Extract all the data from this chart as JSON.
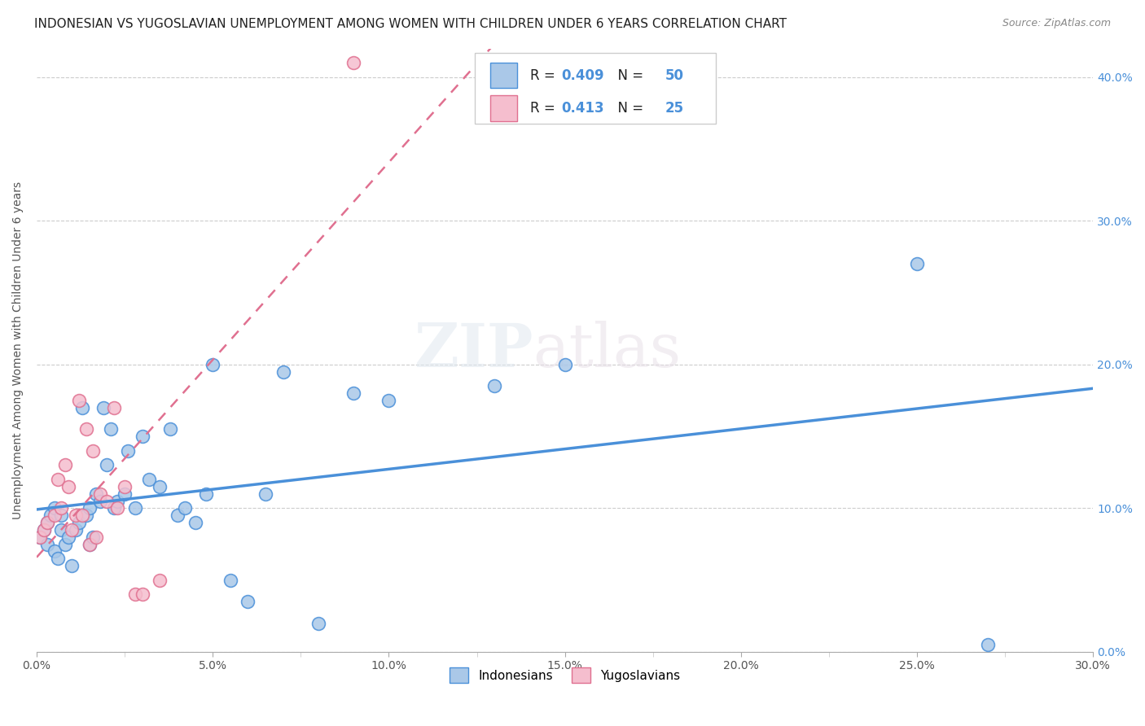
{
  "title": "INDONESIAN VS YUGOSLAVIAN UNEMPLOYMENT AMONG WOMEN WITH CHILDREN UNDER 6 YEARS CORRELATION CHART",
  "source": "Source: ZipAtlas.com",
  "ylabel": "Unemployment Among Women with Children Under 6 years",
  "xlim": [
    0.0,
    0.3
  ],
  "ylim": [
    0.0,
    0.42
  ],
  "xtick_labels": [
    "0.0%",
    "",
    "5.0%",
    "",
    "10.0%",
    "",
    "15.0%",
    "",
    "20.0%",
    "",
    "25.0%",
    "",
    "30.0%"
  ],
  "xtick_vals": [
    0.0,
    0.025,
    0.05,
    0.075,
    0.1,
    0.125,
    0.15,
    0.175,
    0.2,
    0.225,
    0.25,
    0.275,
    0.3
  ],
  "ytick_labels": [
    "0.0%",
    "10.0%",
    "20.0%",
    "30.0%",
    "40.0%"
  ],
  "ytick_vals": [
    0.0,
    0.1,
    0.2,
    0.3,
    0.4
  ],
  "blue_color": "#aac8e8",
  "pink_color": "#f5bece",
  "blue_line_color": "#4a90d9",
  "pink_line_color": "#e07090",
  "blue_R": "0.409",
  "blue_N": "50",
  "pink_R": "0.413",
  "pink_N": "25",
  "legend_label_blue": "Indonesians",
  "legend_label_pink": "Yugoslavians",
  "watermark_zip": "ZIP",
  "watermark_atlas": "atlas",
  "indonesian_x": [
    0.001,
    0.002,
    0.003,
    0.003,
    0.004,
    0.005,
    0.005,
    0.006,
    0.007,
    0.007,
    0.008,
    0.009,
    0.01,
    0.011,
    0.012,
    0.013,
    0.014,
    0.015,
    0.015,
    0.016,
    0.017,
    0.018,
    0.019,
    0.02,
    0.021,
    0.022,
    0.023,
    0.025,
    0.026,
    0.028,
    0.03,
    0.032,
    0.035,
    0.038,
    0.04,
    0.042,
    0.045,
    0.048,
    0.05,
    0.055,
    0.06,
    0.065,
    0.07,
    0.08,
    0.09,
    0.1,
    0.13,
    0.15,
    0.25,
    0.27
  ],
  "indonesian_y": [
    0.08,
    0.085,
    0.09,
    0.075,
    0.095,
    0.07,
    0.1,
    0.065,
    0.085,
    0.095,
    0.075,
    0.08,
    0.06,
    0.085,
    0.09,
    0.17,
    0.095,
    0.1,
    0.075,
    0.08,
    0.11,
    0.105,
    0.17,
    0.13,
    0.155,
    0.1,
    0.105,
    0.11,
    0.14,
    0.1,
    0.15,
    0.12,
    0.115,
    0.155,
    0.095,
    0.1,
    0.09,
    0.11,
    0.2,
    0.05,
    0.035,
    0.11,
    0.195,
    0.02,
    0.18,
    0.175,
    0.185,
    0.2,
    0.27,
    0.005
  ],
  "yugoslavian_x": [
    0.001,
    0.002,
    0.003,
    0.005,
    0.006,
    0.007,
    0.008,
    0.009,
    0.01,
    0.011,
    0.012,
    0.013,
    0.014,
    0.015,
    0.016,
    0.017,
    0.018,
    0.02,
    0.022,
    0.023,
    0.025,
    0.028,
    0.03,
    0.035,
    0.09
  ],
  "yugoslavian_y": [
    0.08,
    0.085,
    0.09,
    0.095,
    0.12,
    0.1,
    0.13,
    0.115,
    0.085,
    0.095,
    0.175,
    0.095,
    0.155,
    0.075,
    0.14,
    0.08,
    0.11,
    0.105,
    0.17,
    0.1,
    0.115,
    0.04,
    0.04,
    0.05,
    0.41
  ]
}
